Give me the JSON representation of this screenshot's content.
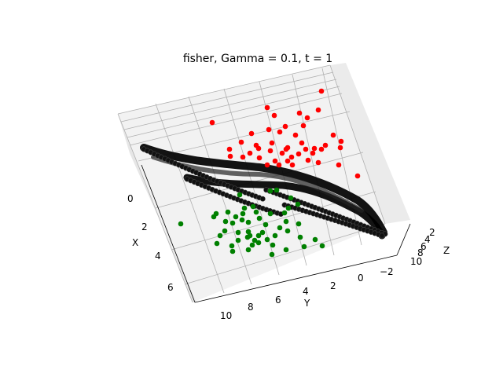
{
  "chart_data": {
    "type": "scatter3d",
    "title": "fisher, Gamma = 0.1, t = 1",
    "xlabel": "X",
    "ylabel": "Y",
    "zlabel": "Z",
    "x_ticks": [
      "0",
      "2",
      "4",
      "6"
    ],
    "y_ticks": [
      "10",
      "8",
      "6",
      "4",
      "2",
      "0",
      "−2"
    ],
    "z_ticks": [
      "10",
      "8",
      "6",
      "4",
      "2"
    ],
    "xlim": [
      -1,
      7
    ],
    "ylim": [
      -3,
      11
    ],
    "zlim": [
      1,
      11
    ],
    "grid": true,
    "colors": {
      "class_red": "#ff0000",
      "class_green": "#008000",
      "surface": "#000000",
      "pane": "#f2f2f2",
      "gridline": "#b0b0b0"
    },
    "series": [
      {
        "color": "red",
        "points": [
          [
            270,
            156
          ],
          [
            340,
            137
          ],
          [
            409,
            116
          ],
          [
            349,
            147
          ],
          [
            381,
            144
          ],
          [
            405,
            140
          ],
          [
            386,
            160
          ],
          [
            391,
            150
          ],
          [
            342,
            165
          ],
          [
            320,
            170
          ],
          [
            356,
            168
          ],
          [
            363,
            161
          ],
          [
            376,
            172
          ],
          [
            384,
            182
          ],
          [
            366,
            188
          ],
          [
            424,
            172
          ],
          [
            307,
            181
          ],
          [
            326,
            185
          ],
          [
            329,
            189
          ],
          [
            292,
            190
          ],
          [
            346,
            182
          ],
          [
            359,
            195
          ],
          [
            371,
            200
          ],
          [
            389,
            190
          ],
          [
            400,
            189
          ],
          [
            409,
            190
          ],
          [
            414,
            185
          ],
          [
            434,
            180
          ],
          [
            433,
            188
          ],
          [
            309,
            200
          ],
          [
            330,
            201
          ],
          [
            350,
            205
          ],
          [
            366,
            205
          ],
          [
            380,
            196
          ],
          [
            392,
            204
          ],
          [
            405,
            207
          ],
          [
            431,
            210
          ],
          [
            293,
            199
          ],
          [
            455,
            224
          ],
          [
            364,
            190
          ],
          [
            344,
            192
          ],
          [
            318,
            195
          ],
          [
            398,
            195
          ],
          [
            372,
            210
          ],
          [
            355,
            210
          ],
          [
            340,
            210
          ]
        ]
      },
      {
        "color": "green",
        "points": [
          [
            305,
            248
          ],
          [
            344,
            243
          ],
          [
            352,
            242
          ],
          [
            370,
            252
          ],
          [
            322,
            263
          ],
          [
            311,
            265
          ],
          [
            309,
            272
          ],
          [
            290,
            270
          ],
          [
            300,
            276
          ],
          [
            287,
            282
          ],
          [
            326,
            270
          ],
          [
            344,
            272
          ],
          [
            362,
            271
          ],
          [
            367,
            265
          ],
          [
            379,
            260
          ],
          [
            364,
            282
          ],
          [
            330,
            278
          ],
          [
            316,
            283
          ],
          [
            296,
            284
          ],
          [
            272,
            276
          ],
          [
            230,
            285
          ],
          [
            280,
            300
          ],
          [
            318,
            300
          ],
          [
            334,
            296
          ],
          [
            340,
            305
          ],
          [
            366,
            294
          ],
          [
            380,
            285
          ],
          [
            303,
            296
          ],
          [
            315,
            302
          ],
          [
            324,
            306
          ],
          [
            321,
            312
          ],
          [
            329,
            309
          ],
          [
            347,
            312
          ],
          [
            364,
            318
          ],
          [
            382,
            302
          ],
          [
            401,
            305
          ],
          [
            410,
            313
          ],
          [
            387,
            314
          ],
          [
            346,
            324
          ],
          [
            316,
            318
          ],
          [
            295,
            313
          ],
          [
            296,
            320
          ],
          [
            276,
            310
          ],
          [
            308,
            280
          ],
          [
            338,
            286
          ],
          [
            356,
            290
          ],
          [
            286,
            294
          ],
          [
            275,
            272
          ],
          [
            329,
            300
          ],
          [
            303,
            306
          ],
          [
            316,
            295
          ],
          [
            350,
            300
          ]
        ]
      }
    ]
  }
}
